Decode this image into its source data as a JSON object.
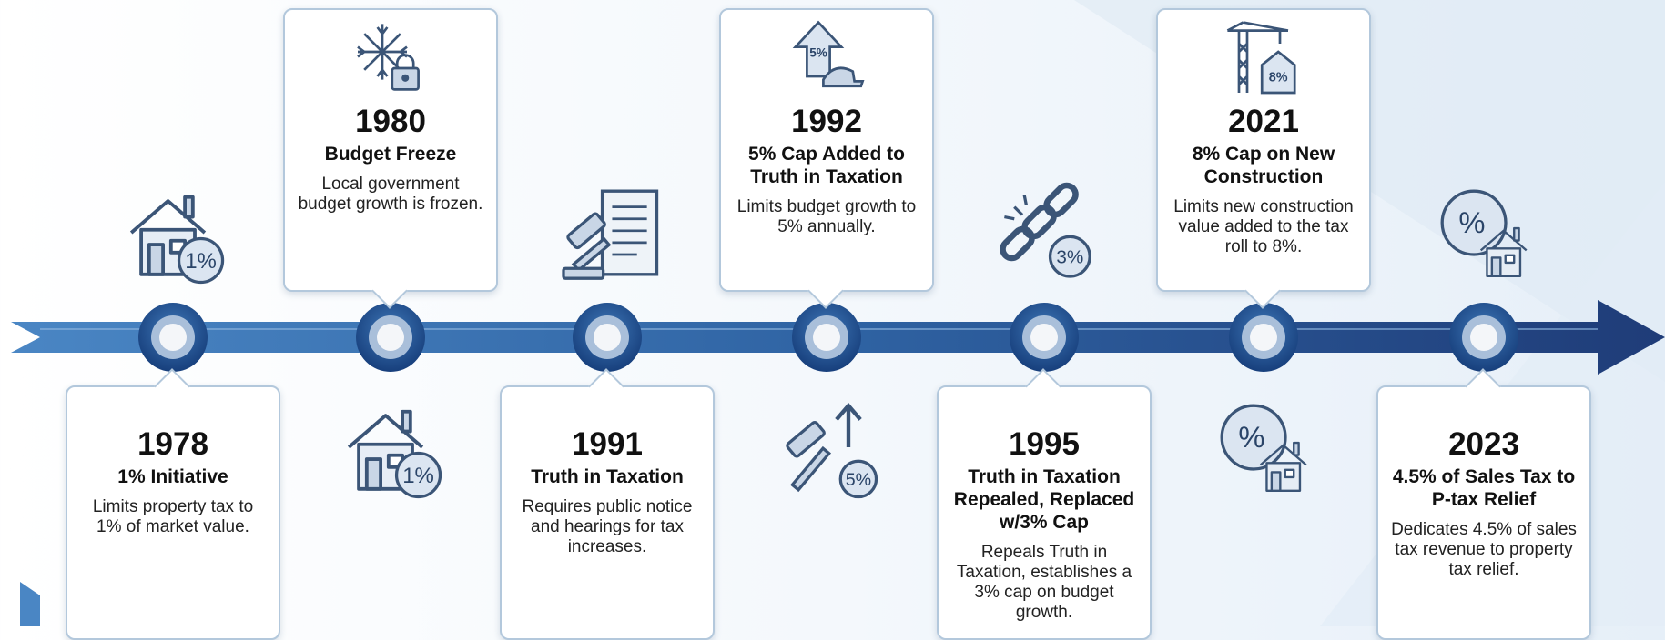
{
  "events": [
    {
      "year": 1978,
      "title": "1% Initiative",
      "description": "Limits property tax to 1% of market value.",
      "side_icon_text": "1%"
    },
    {
      "year": 1980,
      "title": "Budget Freeze",
      "description": "Local government budget growth is frozen.",
      "side_icon_text": "1%"
    },
    {
      "year": 1991,
      "title": "Truth in Taxation",
      "description": "Requires public notice and hearings for tax increases."
    },
    {
      "year": 1992,
      "title": "5% Cap Added to Truth in Taxation",
      "description": "Limits budget growth to 5% annually.",
      "card_icon_text": "5%",
      "side_icon_text": "5%"
    },
    {
      "year": 1995,
      "title": "Truth in Taxation Repealed, Replaced w/3% Cap",
      "description": "Repeals Truth in Taxation, establishes a 3% cap on budget growth.",
      "side_icon_text": "3%"
    },
    {
      "year": 2021,
      "title": "8% Cap on New Construction",
      "description": "Limits new construction value added to the tax roll to 8%.",
      "card_icon_text": "8%",
      "side_icon_text": "%"
    },
    {
      "year": 2023,
      "title": "4.5% of Sales Tax to P-tax Relief",
      "description": "Dedicates 4.5% of sales tax revenue to property tax relief.",
      "side_icon_text": "%"
    }
  ]
}
